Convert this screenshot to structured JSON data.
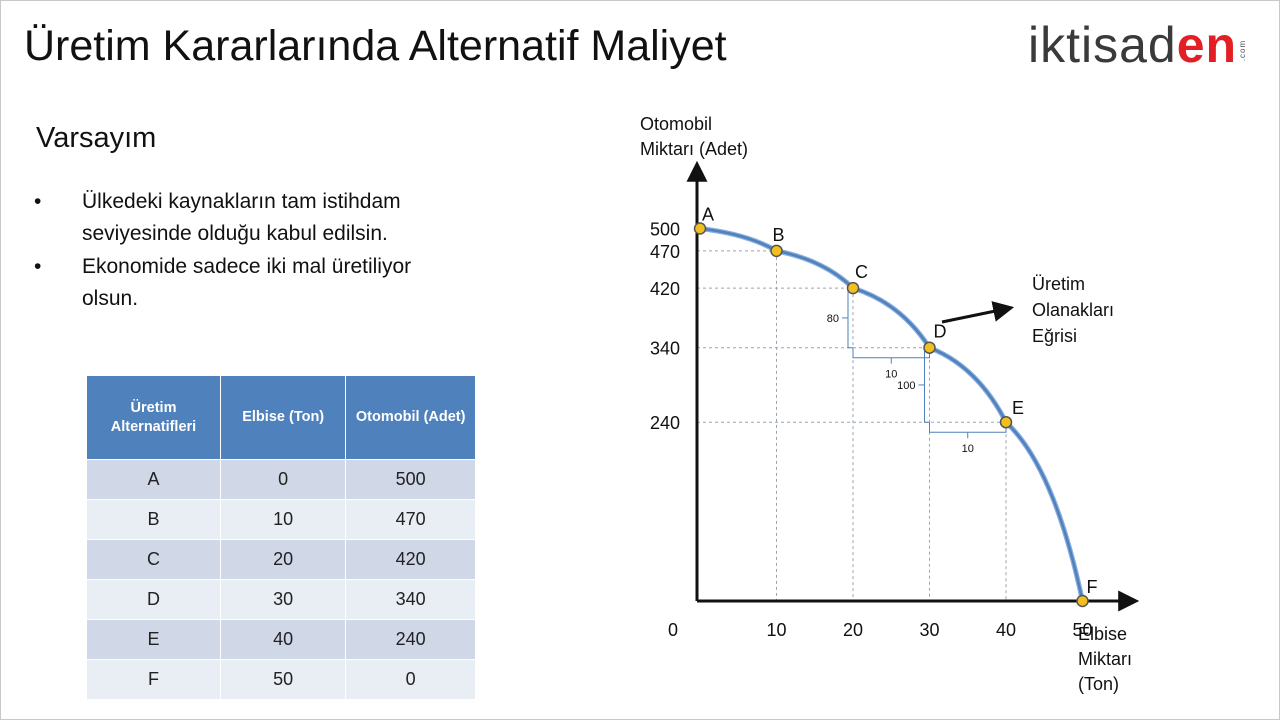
{
  "slide": {
    "title": "Üretim Kararlarında Alternatif Maliyet",
    "logo_main": "iktisad",
    "logo_accent": "en",
    "logo_suffix": ".com",
    "subheading": "Varsayım",
    "bullets": [
      "Ülkedeki kaynakların tam istihdam seviyesinde olduğu kabul edilsin.",
      "Ekonomide sadece iki mal üretiliyor olsun."
    ]
  },
  "table": {
    "headers": [
      "Üretim Alternatifleri",
      "Elbise (Ton)",
      "Otomobil (Adet)"
    ],
    "rows": [
      [
        "A",
        "0",
        "500"
      ],
      [
        "B",
        "10",
        "470"
      ],
      [
        "C",
        "20",
        "420"
      ],
      [
        "D",
        "30",
        "340"
      ],
      [
        "E",
        "40",
        "240"
      ],
      [
        "F",
        "50",
        "0"
      ]
    ]
  },
  "colors": {
    "accent": "#4f81bd",
    "logo_red": "#e31e24",
    "point_fill": "#f2c01e",
    "guide": "#9aa5b3"
  },
  "chart_data": {
    "type": "line",
    "ylabel": "Otomobil Miktarı (Adet)",
    "xlabel": "Elbise Miktarı (Ton)",
    "origin_label": "0",
    "x_ticks": [
      "10",
      "20",
      "30",
      "40",
      "50"
    ],
    "y_ticks": [
      "500",
      "470",
      "420",
      "340",
      "240"
    ],
    "xlim": [
      0,
      56
    ],
    "ylim": [
      0,
      560
    ],
    "points": [
      {
        "label": "A",
        "x": 0,
        "y": 500
      },
      {
        "label": "B",
        "x": 10,
        "y": 470
      },
      {
        "label": "C",
        "x": 20,
        "y": 420
      },
      {
        "label": "D",
        "x": 30,
        "y": 340
      },
      {
        "label": "E",
        "x": 40,
        "y": 240
      },
      {
        "label": "F",
        "x": 50,
        "y": 0
      }
    ],
    "annotations": [
      {
        "text": "80",
        "from": [
          20,
          420
        ],
        "to": [
          20,
          340
        ],
        "kind": "vertical"
      },
      {
        "text": "10",
        "from": [
          20,
          340
        ],
        "to": [
          30,
          340
        ],
        "kind": "horizontal"
      },
      {
        "text": "100",
        "from": [
          30,
          340
        ],
        "to": [
          30,
          240
        ],
        "kind": "vertical"
      },
      {
        "text": "10",
        "from": [
          30,
          240
        ],
        "to": [
          40,
          240
        ],
        "kind": "horizontal"
      }
    ],
    "curve_label": "Üretim Olanakları Eğrisi",
    "curve_label_lines": [
      "Üretim",
      "Olanakları",
      "Eğrisi"
    ],
    "ylabel_lines": [
      "Otomobil",
      "Miktarı (Adet)"
    ],
    "xlabel_lines": [
      "Elbise",
      "Miktarı",
      "(Ton)"
    ]
  }
}
